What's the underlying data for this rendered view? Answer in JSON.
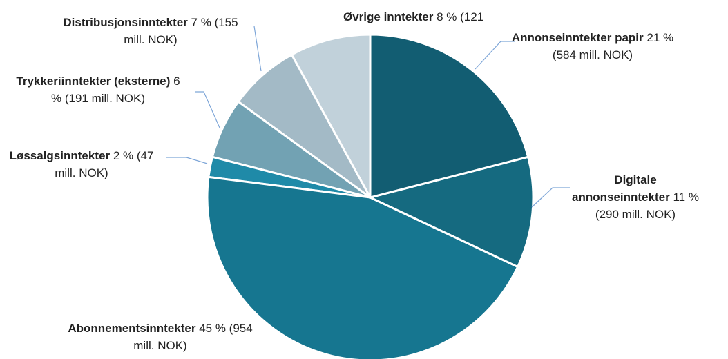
{
  "chart_data": {
    "type": "pie",
    "categories": [
      "Annonseinntekter papir",
      "Digitale annonseinntekter",
      "Abonnementsinntekter",
      "Løssalgsinntekter",
      "Trykkeriinntekter (eksterne)",
      "Distribusjonsinntekter",
      "Øvrige inntekter"
    ],
    "values": [
      21,
      11,
      45,
      2,
      6,
      7,
      8
    ],
    "value_labels": [
      "21 % (584 mill. NOK)",
      "11 % (290 mill. NOK)",
      "45 % (954 mill. NOK)",
      "2 % (47 mill. NOK)",
      "6 % (191 mill. NOK)",
      "7 % (155 mill. NOK)",
      "8 % (121"
    ],
    "colors": [
      "#125d72",
      "#156a80",
      "#167690",
      "#1f8aa8",
      "#72a2b3",
      "#a3bac6",
      "#c1d1da"
    ]
  }
}
